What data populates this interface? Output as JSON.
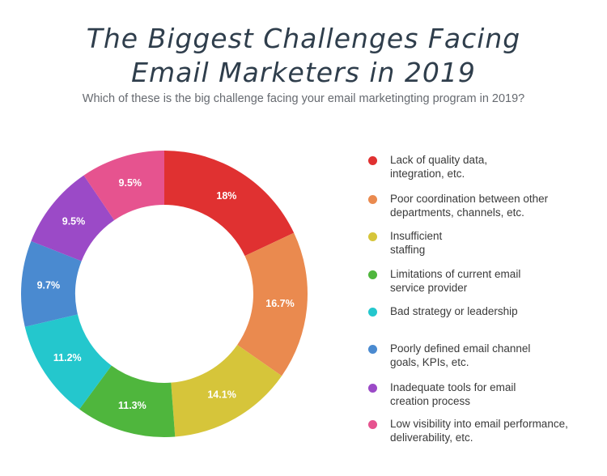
{
  "title_line1": "The Biggest Challenges Facing",
  "title_line2": "Email Marketers in 2019",
  "subtitle": "Which of these is the big challenge facing your email marketingting program in 2019?",
  "chart_data": {
    "type": "pie",
    "title": "The Biggest Challenges Facing Email Marketers in 2019",
    "subtitle": "Which of these is the big challenge facing your email marketingting program in 2019?",
    "categories": [
      "Lack of quality data, integration, etc.",
      "Poor coordination between other departments, channels, etc.",
      "Insufficient staffing",
      "Limitations of current email service provider",
      "Bad strategy or leadership",
      "Poorly defined email channel goals, KPIs, etc.",
      "Inadequate tools for email creation process",
      "Low visibility into email performance, deliverability, etc."
    ],
    "legend_lines": [
      "Lack of quality data,\nintegration, etc.",
      "Poor coordination between other\ndepartments, channels, etc.",
      "Insufficient\nstaffing",
      "Limitations of current email\nservice provider",
      "Bad strategy or leadership",
      "Poorly defined email channel\ngoals, KPIs, etc.",
      "Inadequate tools for email\ncreation process",
      "Low visibility into email performance,\ndeliverability, etc."
    ],
    "values": [
      18,
      16.7,
      14.1,
      11.3,
      11.2,
      9.7,
      9.5,
      9.5
    ],
    "labels": [
      "18%",
      "16.7%",
      "14.1%",
      "11.3%",
      "11.2%",
      "9.7%",
      "9.5%",
      "9.5%"
    ],
    "colors": [
      "#e03131",
      "#ea8a4f",
      "#d6c53a",
      "#4fb63d",
      "#24c7cd",
      "#4a8ad0",
      "#9b4ac7",
      "#e6538f"
    ],
    "legend_position": "right",
    "donut": true
  }
}
